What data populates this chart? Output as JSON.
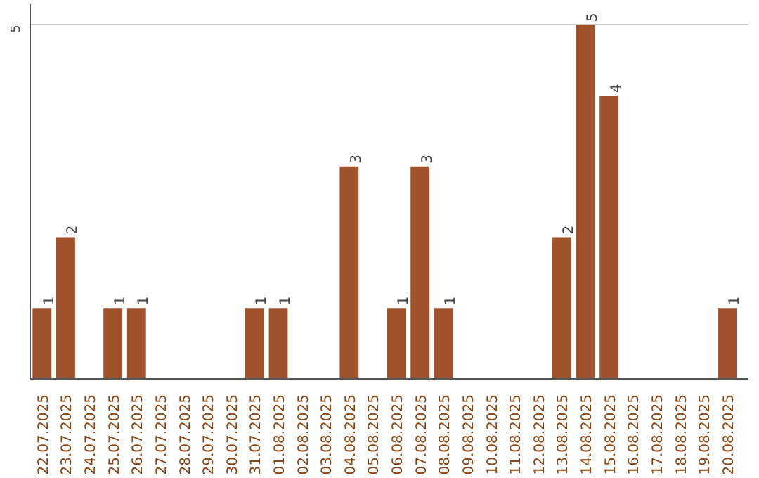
{
  "chart_data": {
    "type": "bar",
    "categories": [
      "22.07.2025",
      "23.07.2025",
      "24.07.2025",
      "25.07.2025",
      "26.07.2025",
      "27.07.2025",
      "28.07.2025",
      "29.07.2025",
      "30.07.2025",
      "31.07.2025",
      "01.08.2025",
      "02.08.2025",
      "03.08.2025",
      "04.08.2025",
      "05.08.2025",
      "06.08.2025",
      "07.08.2025",
      "08.08.2025",
      "09.08.2025",
      "10.08.2025",
      "11.08.2025",
      "12.08.2025",
      "13.08.2025",
      "14.08.2025",
      "15.08.2025",
      "16.08.2025",
      "17.08.2025",
      "18.08.2025",
      "19.08.2025",
      "20.08.2025"
    ],
    "values": [
      1,
      2,
      0,
      1,
      1,
      0,
      0,
      0,
      0,
      1,
      1,
      0,
      0,
      3,
      0,
      1,
      3,
      1,
      0,
      0,
      0,
      0,
      2,
      5,
      4,
      0,
      0,
      0,
      0,
      1
    ],
    "value_labels": [
      "1",
      "2",
      null,
      "1",
      "1",
      null,
      null,
      null,
      null,
      "1",
      "1",
      null,
      null,
      "3",
      null,
      "1",
      "3",
      "1",
      null,
      null,
      null,
      null,
      "2",
      "5",
      "4",
      null,
      null,
      null,
      null,
      "1"
    ],
    "color": "#a0522d",
    "ylim": [
      0,
      5.3
    ],
    "yticks": [
      5
    ],
    "grid": "y"
  }
}
